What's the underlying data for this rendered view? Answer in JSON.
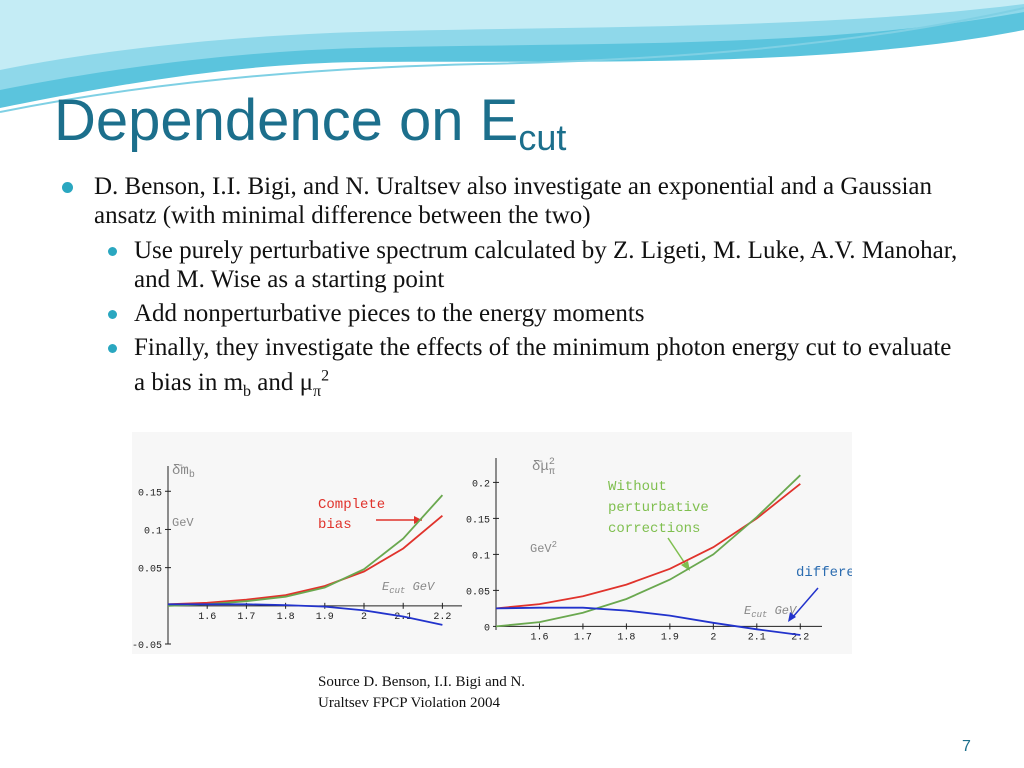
{
  "title": {
    "main": "Dependence on E",
    "sub": "cut"
  },
  "bullets": {
    "b1": "D. Benson, I.I. Bigi, and N. Uraltsev also investigate an exponential and a Gaussian ansatz (with minimal difference between the two)",
    "b2a": "Use purely perturbative spectrum calculated by Z. Ligeti, M. Luke, A.V. Manohar, and M. Wise as a starting point",
    "b2b": "Add nonperturbative pieces to the energy moments",
    "b2c_pre": "Finally, they investigate the effects of the minimum photon energy cut to evaluate a bias in m",
    "b2c_sub": "b",
    "b2c_mid": " and μ",
    "b2c_sub2": "π",
    "b2c_sup": "2"
  },
  "source": "Source D. Benson, I.I. Bigi and N. Uraltsev FPCP Violation 2004",
  "page_number": "7",
  "colors": {
    "title": "#1c6f8c",
    "bullet": "#2aa7c0",
    "red": "#e0332c",
    "green": "#6aa84f",
    "blue": "#2233cc"
  },
  "chart_data": [
    {
      "type": "line",
      "ylabel": "δ̄m_b",
      "yunit": "GeV",
      "xlabel": "E_cut GeV",
      "xlim": [
        1.5,
        2.25
      ],
      "ylim": [
        -0.05,
        0.17
      ],
      "x_ticks": [
        "1.6",
        "1.7",
        "1.8",
        "1.9",
        "2",
        "2.1",
        "2.2"
      ],
      "y_ticks": [
        "0.15",
        "0.1",
        "0.05",
        "-0.05"
      ],
      "annotation": "Complete bias",
      "series": [
        {
          "color": "#e0332c",
          "x": [
            1.5,
            1.6,
            1.7,
            1.8,
            1.9,
            2.0,
            2.1,
            2.2
          ],
          "y": [
            0.002,
            0.004,
            0.008,
            0.014,
            0.026,
            0.045,
            0.075,
            0.118
          ]
        },
        {
          "color": "#6aa84f",
          "x": [
            1.5,
            1.6,
            1.7,
            1.8,
            1.9,
            2.0,
            2.1,
            2.2
          ],
          "y": [
            0.0,
            0.002,
            0.006,
            0.012,
            0.024,
            0.048,
            0.088,
            0.145
          ]
        },
        {
          "color": "#2233cc",
          "x": [
            1.5,
            1.6,
            1.7,
            1.8,
            1.9,
            2.0,
            2.1,
            2.2
          ],
          "y": [
            0.002,
            0.002,
            0.002,
            0.001,
            -0.001,
            -0.006,
            -0.014,
            -0.025
          ]
        }
      ]
    },
    {
      "type": "line",
      "ylabel": "δ̄μ²_π",
      "yunit": "GeV²",
      "xlabel": "E_cut GeV",
      "xlim": [
        1.5,
        2.25
      ],
      "ylim": [
        -0.005,
        0.22
      ],
      "x_ticks": [
        "1.6",
        "1.7",
        "1.8",
        "1.9",
        "2",
        "2.1",
        "2.2"
      ],
      "y_ticks": [
        "0.2",
        "0.15",
        "0.1",
        "0.05",
        "0"
      ],
      "annotations": [
        "Without perturbative corrections",
        "difference"
      ],
      "series": [
        {
          "color": "#e0332c",
          "x": [
            1.5,
            1.6,
            1.7,
            1.8,
            1.9,
            2.0,
            2.1,
            2.2
          ],
          "y": [
            0.025,
            0.031,
            0.042,
            0.058,
            0.08,
            0.11,
            0.15,
            0.198
          ]
        },
        {
          "color": "#6aa84f",
          "x": [
            1.5,
            1.6,
            1.7,
            1.8,
            1.9,
            2.0,
            2.1,
            2.2
          ],
          "y": [
            0.0,
            0.006,
            0.019,
            0.038,
            0.065,
            0.1,
            0.152,
            0.21
          ]
        },
        {
          "color": "#2233cc",
          "x": [
            1.5,
            1.6,
            1.7,
            1.8,
            1.9,
            2.0,
            2.1,
            2.2
          ],
          "y": [
            0.025,
            0.026,
            0.026,
            0.022,
            0.015,
            0.005,
            -0.004,
            -0.012
          ]
        }
      ]
    }
  ]
}
